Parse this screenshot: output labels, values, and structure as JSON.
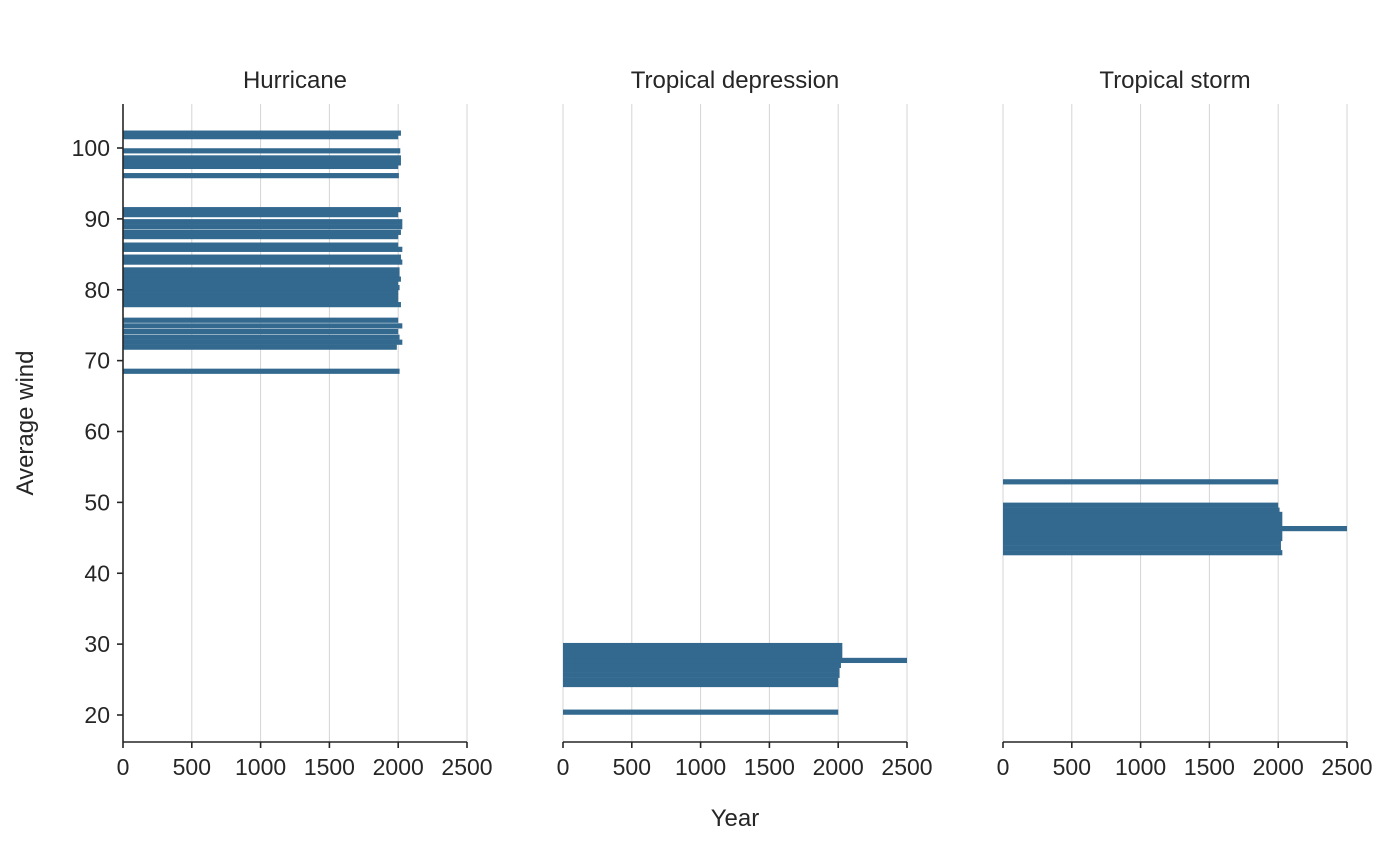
{
  "chart_data": {
    "type": "bar",
    "orientation": "horizontal",
    "x_label": "Year",
    "y_label": "Average wind",
    "x_ticks": [
      0,
      500,
      1000,
      1500,
      2000,
      2500
    ],
    "x_range": [
      0,
      2500
    ],
    "y_ticks": [
      20,
      30,
      40,
      50,
      60,
      70,
      80,
      90,
      100
    ],
    "y_range": [
      16.2,
      106.3
    ],
    "grid": "vertical",
    "bar_color": "#33698f",
    "facets": [
      {
        "title": "Hurricane",
        "bars": [
          {
            "y": 102.1,
            "value": 2020
          },
          {
            "y": 101.6,
            "value": 2000
          },
          {
            "y": 99.6,
            "value": 2015
          },
          {
            "y": 98.6,
            "value": 2020
          },
          {
            "y": 97.9,
            "value": 2020
          },
          {
            "y": 97.4,
            "value": 2000
          },
          {
            "y": 96.1,
            "value": 2005
          },
          {
            "y": 91.3,
            "value": 2020
          },
          {
            "y": 90.6,
            "value": 2000
          },
          {
            "y": 89.6,
            "value": 2030
          },
          {
            "y": 88.9,
            "value": 2030
          },
          {
            "y": 88.1,
            "value": 2020
          },
          {
            "y": 87.5,
            "value": 2000
          },
          {
            "y": 86.3,
            "value": 2000
          },
          {
            "y": 85.7,
            "value": 2030
          },
          {
            "y": 84.6,
            "value": 2020
          },
          {
            "y": 83.9,
            "value": 2030
          },
          {
            "y": 82.8,
            "value": 2010
          },
          {
            "y": 82.1,
            "value": 2010
          },
          {
            "y": 81.5,
            "value": 2020
          },
          {
            "y": 80.9,
            "value": 2000
          },
          {
            "y": 80.3,
            "value": 2010
          },
          {
            "y": 79.7,
            "value": 2000
          },
          {
            "y": 79.1,
            "value": 2000
          },
          {
            "y": 78.5,
            "value": 2000
          },
          {
            "y": 77.9,
            "value": 2020
          },
          {
            "y": 75.7,
            "value": 2000
          },
          {
            "y": 74.9,
            "value": 2030
          },
          {
            "y": 74.1,
            "value": 2000
          },
          {
            "y": 73.3,
            "value": 2010
          },
          {
            "y": 72.6,
            "value": 2030
          },
          {
            "y": 71.9,
            "value": 1990
          },
          {
            "y": 68.5,
            "value": 2010
          }
        ]
      },
      {
        "title": "Tropical depression",
        "bars": [
          {
            "y": 29.8,
            "value": 2030
          },
          {
            "y": 29.1,
            "value": 2030
          },
          {
            "y": 28.4,
            "value": 2030
          },
          {
            "y": 27.7,
            "value": 2500
          },
          {
            "y": 27.0,
            "value": 2020
          },
          {
            "y": 26.3,
            "value": 2010
          },
          {
            "y": 25.6,
            "value": 2010
          },
          {
            "y": 24.9,
            "value": 2000
          },
          {
            "y": 24.3,
            "value": 2000
          },
          {
            "y": 20.4,
            "value": 2000
          }
        ]
      },
      {
        "title": "Tropical storm",
        "bars": [
          {
            "y": 52.9,
            "value": 2000
          },
          {
            "y": 49.6,
            "value": 2000
          },
          {
            "y": 48.9,
            "value": 2010
          },
          {
            "y": 48.3,
            "value": 2030
          },
          {
            "y": 47.6,
            "value": 2030
          },
          {
            "y": 46.9,
            "value": 2030
          },
          {
            "y": 46.3,
            "value": 2500
          },
          {
            "y": 45.6,
            "value": 2030
          },
          {
            "y": 44.9,
            "value": 2030
          },
          {
            "y": 44.3,
            "value": 2020
          },
          {
            "y": 43.6,
            "value": 2020
          },
          {
            "y": 42.9,
            "value": 2030
          }
        ]
      }
    ]
  }
}
